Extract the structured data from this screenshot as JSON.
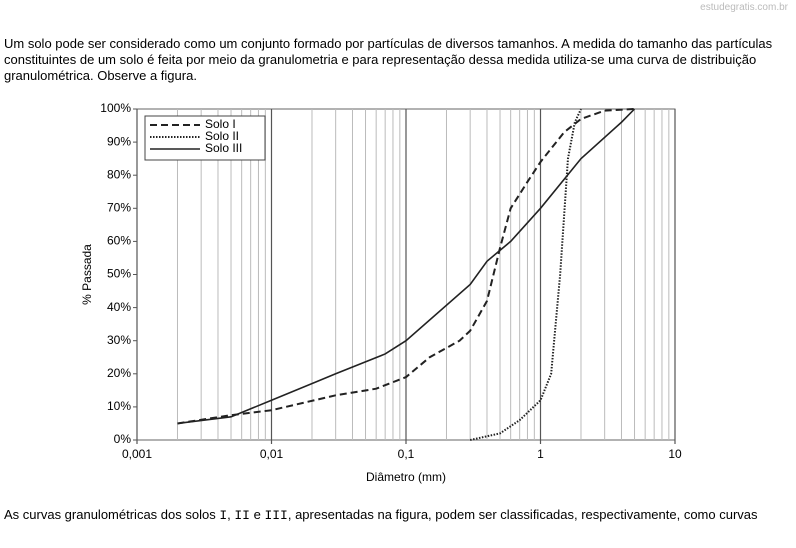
{
  "header": {
    "site": "estudegratis.com.br"
  },
  "intro": "Um solo pode ser considerado como um conjunto formado por partículas de diversos tamanhos. A medida do tamanho das partículas constituintes de um solo é feita por meio da granulometria e para representação dessa medida utiliza-se uma curva de distribuição granulométrica. Observe a figura.",
  "question": {
    "segments": [
      {
        "text": "As curvas granulométricas dos solos ",
        "mono": false
      },
      {
        "text": "I",
        "mono": true
      },
      {
        "text": ", ",
        "mono": false
      },
      {
        "text": "II",
        "mono": true
      },
      {
        "text": " e ",
        "mono": false
      },
      {
        "text": "III",
        "mono": true
      },
      {
        "text": ", apresentadas na figura, podem ser classificadas, respectivamente, como curvas",
        "mono": false
      }
    ]
  },
  "chart_data": {
    "type": "line",
    "x_label": "Diâmetro (mm)",
    "y_label": "% Passada",
    "x_log": true,
    "x_minor_grid": true,
    "xlim": [
      0.001,
      10
    ],
    "xticks": [
      {
        "value": 0.001,
        "label": "0,001"
      },
      {
        "value": 0.01,
        "label": "0,01"
      },
      {
        "value": 0.1,
        "label": "0,1"
      },
      1,
      10
    ],
    "ylim": [
      0,
      100
    ],
    "yticks": [
      {
        "value": 0,
        "label": "0%"
      },
      {
        "value": 10,
        "label": "10%"
      },
      {
        "value": 20,
        "label": "20%"
      },
      {
        "value": 30,
        "label": "30%"
      },
      {
        "value": 40,
        "label": "40%"
      },
      {
        "value": 50,
        "label": "50%"
      },
      {
        "value": 60,
        "label": "60%"
      },
      {
        "value": 70,
        "label": "70%"
      },
      {
        "value": 80,
        "label": "80%"
      },
      {
        "value": 90,
        "label": "90%"
      },
      {
        "value": 100,
        "label": "100%"
      }
    ],
    "legend": "upper left",
    "series": [
      {
        "name": "Solo I",
        "color": "#222",
        "style": "dashed",
        "x": [
          0.002,
          0.005,
          0.01,
          0.03,
          0.06,
          0.1,
          0.15,
          0.25,
          0.3,
          0.4,
          0.5,
          0.6,
          0.8,
          1,
          1.5,
          2,
          3,
          5
        ],
        "values": [
          5,
          7.5,
          9,
          13.5,
          15.5,
          19,
          25,
          30,
          33,
          42,
          58,
          70,
          78,
          84,
          93,
          97,
          99.5,
          100
        ]
      },
      {
        "name": "Solo II",
        "color": "#222",
        "style": "dotted",
        "x": [
          0.3,
          0.5,
          0.7,
          1,
          1.2,
          1.4,
          1.6,
          1.8,
          2
        ],
        "values": [
          0,
          2,
          6,
          12,
          20,
          50,
          85,
          96,
          100
        ]
      },
      {
        "name": "Solo III",
        "color": "#222",
        "style": "solid",
        "x": [
          0.002,
          0.005,
          0.01,
          0.03,
          0.07,
          0.1,
          0.3,
          0.4,
          0.6,
          1,
          2,
          4,
          5
        ],
        "values": [
          5,
          7,
          12,
          20,
          26,
          30,
          47,
          54,
          60,
          70,
          85,
          96,
          100
        ]
      }
    ]
  }
}
